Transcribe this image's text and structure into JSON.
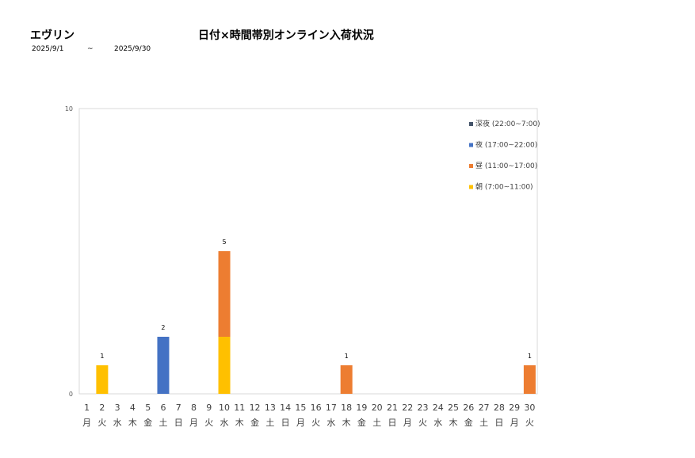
{
  "header": {
    "name": "エヴリン",
    "title": "日付×時間帯別オンライン入荷状況",
    "date_from": "2025/9/1",
    "separator": "~",
    "date_to": "2025/9/30"
  },
  "colors": {
    "deep_night": "#44546A",
    "night": "#4472C4",
    "day": "#ED7D31",
    "morning": "#FFC000",
    "axis": "#D9D9D9",
    "text": "#000000"
  },
  "chart_data": {
    "type": "bar",
    "stacked": true,
    "title": "",
    "xlabel": "",
    "ylabel": "",
    "ylim": [
      0,
      10
    ],
    "yticks": [
      0,
      10
    ],
    "grid": false,
    "legend_position": "top-right",
    "categories": [
      "1",
      "2",
      "3",
      "4",
      "5",
      "6",
      "7",
      "8",
      "9",
      "10",
      "11",
      "12",
      "13",
      "14",
      "15",
      "16",
      "17",
      "18",
      "19",
      "20",
      "21",
      "22",
      "23",
      "24",
      "25",
      "26",
      "27",
      "28",
      "29",
      "30"
    ],
    "weekdays": [
      "月",
      "火",
      "水",
      "木",
      "金",
      "土",
      "日",
      "月",
      "火",
      "水",
      "木",
      "金",
      "土",
      "日",
      "月",
      "火",
      "水",
      "木",
      "金",
      "土",
      "日",
      "月",
      "火",
      "水",
      "木",
      "金",
      "土",
      "日",
      "月",
      "火"
    ],
    "series": [
      {
        "name": "朝 (7:00~11:00)",
        "color_key": "morning",
        "values": [
          0,
          1,
          0,
          0,
          0,
          0,
          0,
          0,
          0,
          2,
          0,
          0,
          0,
          0,
          0,
          0,
          0,
          0,
          0,
          0,
          0,
          0,
          0,
          0,
          0,
          0,
          0,
          0,
          0,
          0
        ]
      },
      {
        "name": "昼 (11:00~17:00)",
        "color_key": "day",
        "values": [
          0,
          0,
          0,
          0,
          0,
          0,
          0,
          0,
          0,
          3,
          0,
          0,
          0,
          0,
          0,
          0,
          0,
          1,
          0,
          0,
          0,
          0,
          0,
          0,
          0,
          0,
          0,
          0,
          0,
          1
        ]
      },
      {
        "name": "夜 (17:00~22:00)",
        "color_key": "night",
        "values": [
          0,
          0,
          0,
          0,
          0,
          2,
          0,
          0,
          0,
          0,
          0,
          0,
          0,
          0,
          0,
          0,
          0,
          0,
          0,
          0,
          0,
          0,
          0,
          0,
          0,
          0,
          0,
          0,
          0,
          0
        ]
      },
      {
        "name": "深夜 (22:00~7:00)",
        "color_key": "deep_night",
        "values": [
          0,
          0,
          0,
          0,
          0,
          0,
          0,
          0,
          0,
          0,
          0,
          0,
          0,
          0,
          0,
          0,
          0,
          0,
          0,
          0,
          0,
          0,
          0,
          0,
          0,
          0,
          0,
          0,
          0,
          0
        ]
      }
    ],
    "legend_order": [
      "深夜 (22:00~7:00)",
      "夜 (17:00~22:00)",
      "昼 (11:00~17:00)",
      "朝 (7:00~11:00)"
    ]
  }
}
